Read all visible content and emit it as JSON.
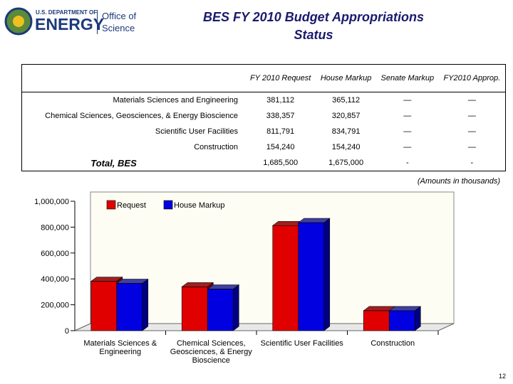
{
  "logo": {
    "agency": "U.S. DEPARTMENT OF",
    "name": "ENERGY",
    "office": [
      "Office of",
      "Science"
    ]
  },
  "header": {
    "title": [
      "BES FY 2010 Budget Appropriations",
      "Status"
    ]
  },
  "table": {
    "columns": [
      "FY 2010 Request",
      "House Markup",
      "Senate Markup",
      "FY2010 Approp."
    ],
    "rows": [
      [
        "Materials Sciences and Engineering",
        "381,112",
        "365,112",
        "—",
        "—"
      ],
      [
        "Chemical Sciences, Geosciences, & Energy Bioscience",
        "338,357",
        "320,857",
        "—",
        "—"
      ],
      [
        "Scientific User Facilities",
        "811,791",
        "834,791",
        "—",
        "—"
      ],
      [
        "Construction",
        "154,240",
        "154,240",
        "—",
        "—"
      ],
      [
        "Total, BES",
        "1,685,500",
        "1,675,000",
        "-",
        "-"
      ]
    ],
    "note": "(Amounts in thousands)"
  },
  "chart_data": {
    "type": "bar3d",
    "categories": [
      "Materials Sciences & Engineering",
      "Chemical Sciences, Geosciences, & Energy Bioscience",
      "Scientific User Facilities",
      "Construction"
    ],
    "series": [
      {
        "name": "Request",
        "color": "#e00000",
        "values": [
          381112,
          338357,
          811791,
          154240
        ]
      },
      {
        "name": "House Markup",
        "color": "#0000e0",
        "values": [
          365112,
          320857,
          834791,
          154240
        ]
      }
    ],
    "ylim": [
      0,
      1000000
    ],
    "yticks": [
      0,
      {
        "value": 200000,
        "label": "200,000"
      },
      {
        "value": 400000,
        "label": "400,000"
      },
      {
        "value": 600000,
        "label": "600,000"
      },
      {
        "value": 800000,
        "label": "800,000"
      },
      {
        "value": 1000000,
        "label": "1,000,000"
      }
    ]
  },
  "page_number": "12"
}
